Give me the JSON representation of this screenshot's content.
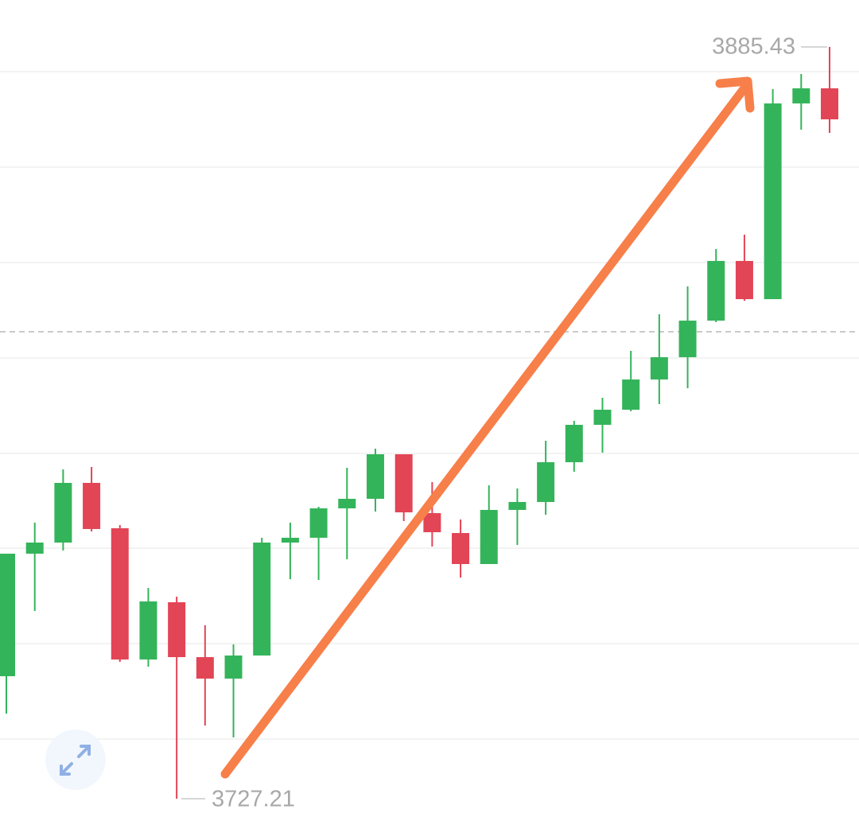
{
  "chart_data": {
    "type": "candlestick",
    "open": [
      3752.99,
      3778.78,
      3781.12,
      3793.68,
      3784.13,
      3756.51,
      3768.56,
      3757.01,
      3752.49,
      3757.35,
      3781.12,
      3782.13,
      3788.32,
      3790.33,
      3799.71,
      3787.32,
      3783.13,
      3776.6,
      3787.99,
      3789.66,
      3798.03,
      3805.9,
      3809.08,
      3815.44,
      3820.13,
      3827.83,
      3840.39,
      3832.35,
      3873.54,
      3876.72
    ],
    "high": [
      3778.78,
      3785.31,
      3796.52,
      3797.03,
      3784.8,
      3771.58,
      3769.74,
      3763.71,
      3759.69,
      3782.13,
      3785.31,
      3788.66,
      3796.86,
      3800.88,
      3799.71,
      3793.85,
      3785.98,
      3793.18,
      3792.51,
      3802.55,
      3806.74,
      3811.59,
      3821.47,
      3829.17,
      3835.03,
      3842.9,
      3845.92,
      3876.56,
      3879.74,
      3885.43
    ],
    "low": [
      3745.12,
      3766.72,
      3779.45,
      3783.47,
      3756.01,
      3755.0,
      3727.21,
      3742.61,
      3740.1,
      3757.35,
      3773.42,
      3773.25,
      3777.6,
      3787.65,
      3785.64,
      3780.28,
      3773.75,
      3776.6,
      3780.62,
      3786.98,
      3796.02,
      3800.04,
      3808.75,
      3810.25,
      3813.6,
      3827.5,
      3832.02,
      3832.35,
      3868.02,
      3867.35
    ],
    "close": [
      3778.78,
      3781.12,
      3793.68,
      3783.97,
      3756.51,
      3768.73,
      3757.01,
      3752.49,
      3757.35,
      3781.12,
      3782.13,
      3788.32,
      3790.33,
      3799.71,
      3787.48,
      3783.3,
      3776.6,
      3787.99,
      3789.66,
      3798.03,
      3805.9,
      3809.08,
      3815.44,
      3820.13,
      3827.83,
      3840.39,
      3832.35,
      3873.54,
      3876.72,
      3870.19
    ],
    "up_color": "#34b45a",
    "down_color": "#e24555",
    "price_line": 3825.49,
    "ylim": [
      3722.52,
      3895.31
    ]
  }
}
